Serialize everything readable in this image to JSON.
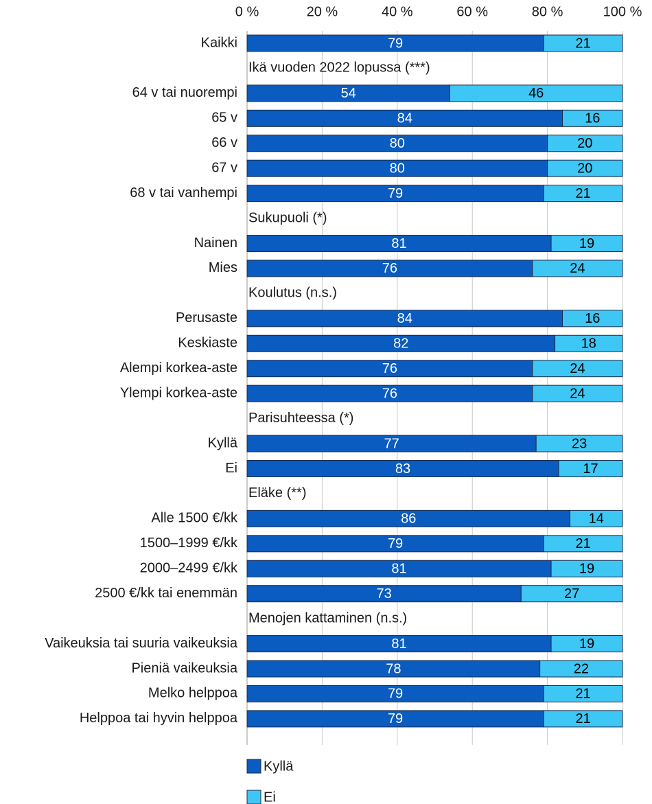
{
  "chart_data": {
    "type": "stacked-barh",
    "categories": [
      "Kaikki",
      "Ikä vuoden 2022 lopussa (***)",
      "64 v tai nuorempi",
      "65 v",
      "66 v",
      "67 v",
      "68 v tai vanhempi",
      "Sukupuoli (*)",
      "Nainen",
      "Mies",
      "Koulutus (n.s.)",
      "Perusaste",
      "Keskiaste",
      "Alempi korkea-aste",
      "Ylempi korkea-aste",
      "Parisuhteessa (*)",
      "Kyllä",
      "Ei",
      "Eläke (**)",
      "Alle 1500 €/kk",
      "1500–1999 €/kk",
      "2000–2499 €/kk",
      "2500 €/kk tai enemmän",
      "Menojen kattaminen (n.s.)",
      "Vaikeuksia tai suuria vaikeuksia",
      "Pieniä vaikeuksia",
      "Melko helppoa",
      "Helppoa tai hyvin helppoa"
    ],
    "series": [
      {
        "name": "Kyllä",
        "color": "#0a5cc0",
        "values": [
          79,
          null,
          54,
          84,
          80,
          80,
          79,
          null,
          81,
          76,
          null,
          84,
          82,
          76,
          76,
          null,
          77,
          83,
          null,
          86,
          79,
          81,
          73,
          null,
          81,
          78,
          79,
          79
        ]
      },
      {
        "name": "Ei",
        "color": "#3ec6f4",
        "values": [
          21,
          null,
          46,
          16,
          20,
          20,
          21,
          null,
          19,
          24,
          null,
          16,
          18,
          24,
          24,
          null,
          23,
          17,
          null,
          14,
          21,
          19,
          27,
          null,
          19,
          22,
          21,
          21
        ]
      }
    ],
    "xlim": [
      0,
      100
    ],
    "xticks": [
      {
        "value": 0,
        "label": "0 %"
      },
      {
        "value": 20,
        "label": "20 %"
      },
      {
        "value": 40,
        "label": "40 %"
      },
      {
        "value": 60,
        "label": "60 %"
      },
      {
        "value": 80,
        "label": "80 %"
      },
      {
        "value": 100,
        "label": "100 %"
      }
    ],
    "grid": true
  }
}
